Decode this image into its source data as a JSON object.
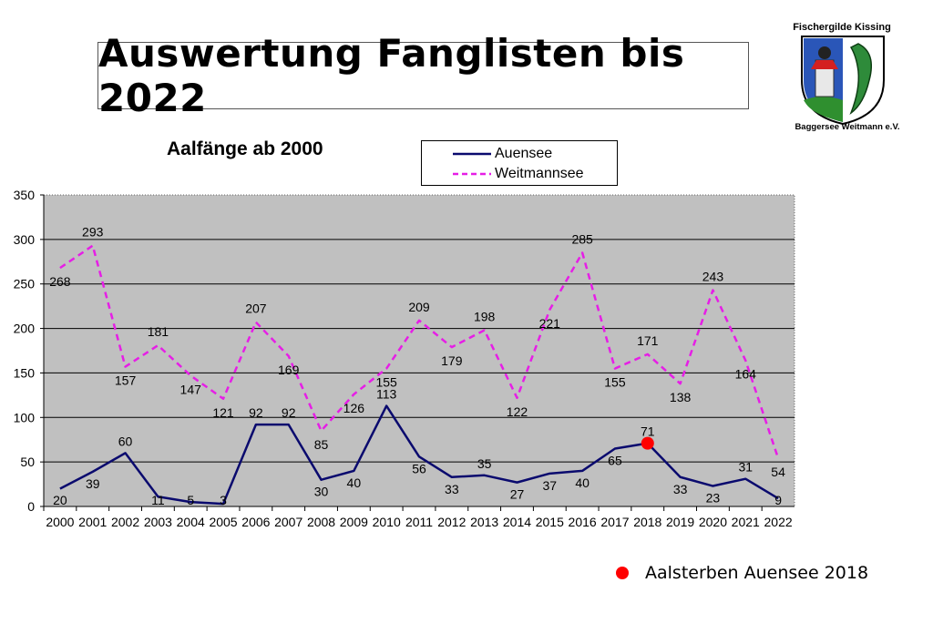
{
  "page": {
    "title": "Auswertung Fanglisten bis 2022",
    "logo_top_text": "Fischergilde Kissing",
    "logo_bottom_text": "Baggersee Weitmann e.V.",
    "note_label": "Aalsterben Auensee 2018",
    "note_color": "#ff0000"
  },
  "chart_data": {
    "type": "line",
    "title": "Aalfänge ab 2000",
    "xlabel": "",
    "ylabel": "",
    "categories": [
      "2000",
      "2001",
      "2002",
      "2003",
      "2004",
      "2005",
      "2006",
      "2007",
      "2008",
      "2009",
      "2010",
      "2011",
      "2012",
      "2013",
      "2014",
      "2015",
      "2016",
      "2017",
      "2018",
      "2019",
      "2020",
      "2021",
      "2022"
    ],
    "ylim": [
      0,
      350
    ],
    "yticks": [
      0,
      50,
      100,
      150,
      200,
      250,
      300,
      350
    ],
    "grid": true,
    "background": "#c0c0c0",
    "legend_position": "top",
    "series": [
      {
        "name": "Auensee",
        "color": "#0a0a6e",
        "style": "solid",
        "values": [
          20,
          39,
          60,
          11,
          5,
          3,
          92,
          92,
          30,
          40,
          113,
          56,
          33,
          35,
          27,
          37,
          40,
          65,
          71,
          33,
          23,
          31,
          9
        ]
      },
      {
        "name": "Weitmannsee",
        "color": "#e61ee6",
        "style": "dashed",
        "values": [
          268,
          293,
          157,
          181,
          147,
          121,
          207,
          169,
          85,
          126,
          155,
          209,
          179,
          198,
          122,
          221,
          285,
          155,
          171,
          138,
          243,
          164,
          54
        ]
      }
    ],
    "highlight": {
      "series": "Auensee",
      "category": "2018",
      "value": 71,
      "color": "#ff0000"
    }
  }
}
